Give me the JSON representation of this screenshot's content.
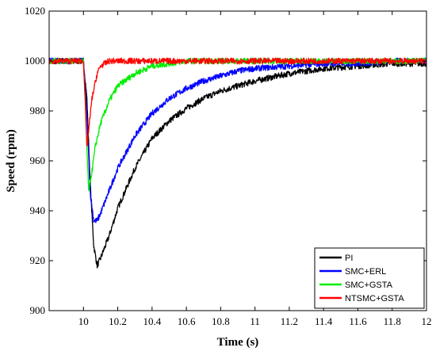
{
  "chart_data": {
    "type": "line",
    "title": "",
    "xlabel": "Time (s)",
    "ylabel": "Speed (rpm)",
    "xlim": [
      9.8,
      12
    ],
    "ylim": [
      900,
      1020
    ],
    "x_ticks": [
      10,
      10.2,
      10.4,
      10.6,
      10.8,
      11,
      11.2,
      11.4,
      11.6,
      11.8,
      12
    ],
    "x_tick_labels": [
      "10",
      "10.2",
      "10.4",
      "10.6",
      "10.8",
      "11",
      "11.2",
      "11.4",
      "11.6",
      "11.8",
      "12"
    ],
    "y_ticks": [
      900,
      920,
      940,
      960,
      980,
      1000,
      1020
    ],
    "y_tick_labels": [
      "900",
      "920",
      "940",
      "960",
      "980",
      "1000",
      "1020"
    ],
    "grid": false,
    "legend_position": "bottom-right",
    "series": [
      {
        "name": "PI",
        "color": "#000000",
        "x": [
          9.8,
          10.0,
          10.02,
          10.04,
          10.06,
          10.08,
          10.1,
          10.15,
          10.2,
          10.3,
          10.4,
          10.5,
          10.6,
          10.7,
          10.8,
          10.9,
          11.0,
          11.2,
          11.4,
          11.6,
          11.8,
          12.0
        ],
        "y": [
          1000,
          1000,
          985,
          950,
          926,
          918,
          921,
          930,
          941,
          957,
          969,
          976,
          981,
          985,
          988,
          990,
          992,
          995,
          997,
          998,
          999,
          999
        ]
      },
      {
        "name": "SMC+ERL",
        "color": "#0000ff",
        "x": [
          9.8,
          10.0,
          10.02,
          10.04,
          10.06,
          10.08,
          10.1,
          10.15,
          10.2,
          10.3,
          10.4,
          10.5,
          10.6,
          10.7,
          10.8,
          10.9,
          11.0,
          11.2,
          11.4,
          11.6,
          11.8,
          12.0
        ],
        "y": [
          1000,
          1000,
          978,
          947,
          936,
          936,
          939,
          948,
          957,
          970,
          979,
          985,
          989,
          992,
          994,
          996,
          997,
          998,
          999,
          999,
          1000,
          1000
        ]
      },
      {
        "name": "SMC+GSTA",
        "color": "#00ee00",
        "x": [
          9.8,
          10.0,
          10.02,
          10.03,
          10.05,
          10.07,
          10.1,
          10.15,
          10.2,
          10.3,
          10.4,
          10.5,
          10.6,
          10.8,
          11.0,
          12.0
        ],
        "y": [
          1000,
          1000,
          965,
          948,
          956,
          966,
          975,
          984,
          990,
          995,
          998,
          999,
          1000,
          1000,
          1000,
          1000
        ]
      },
      {
        "name": "NTSMC+GSTA",
        "color": "#ff0000",
        "x": [
          9.8,
          10.0,
          10.01,
          10.02,
          10.03,
          10.05,
          10.08,
          10.1,
          10.15,
          10.2,
          10.3,
          12.0
        ],
        "y": [
          1000,
          1000,
          985,
          965,
          972,
          985,
          995,
          998,
          1000,
          1000,
          1000,
          1000
        ]
      }
    ]
  }
}
